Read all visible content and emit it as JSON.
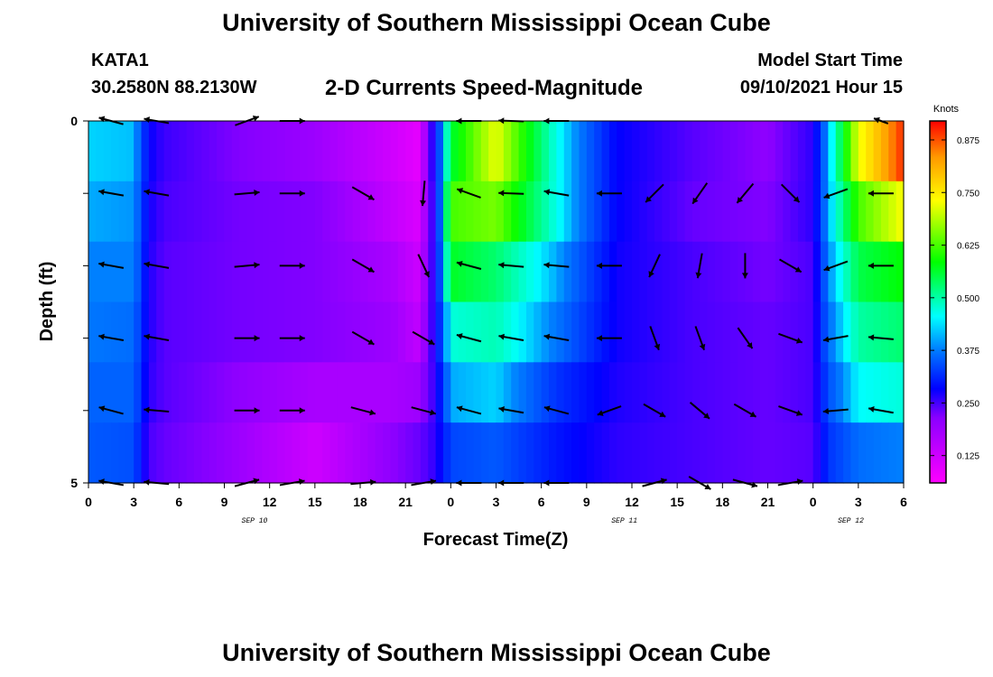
{
  "header": {
    "title": "University of Southern Mississippi Ocean Cube",
    "station_id": "KATA1",
    "coordinates": "30.2580N  88.2130W",
    "subtitle": "2-D Currents Speed-Magnitude",
    "model_start_label": "Model Start Time",
    "model_start_value": "09/10/2021 Hour 15"
  },
  "footer": {
    "title": "University of Southern Mississippi Ocean Cube"
  },
  "chart_data": {
    "type": "heatmap",
    "xlabel": "Forecast Time(Z)",
    "ylabel": "Depth (ft)",
    "x_tick_labels": [
      "0",
      "3",
      "6",
      "9",
      "12",
      "15",
      "18",
      "21",
      "0",
      "3",
      "6",
      "9",
      "12",
      "15",
      "18",
      "21",
      "0",
      "3",
      "6"
    ],
    "x_range_hours": [
      0,
      54
    ],
    "y_tick_labels": [
      "0",
      "5"
    ],
    "y_range": [
      0,
      5
    ],
    "date_labels": [
      {
        "label": "SEP 10",
        "hour": 11
      },
      {
        "label": "SEP 11",
        "hour": 35.5
      },
      {
        "label": "SEP 12",
        "hour": 50.5
      }
    ],
    "colorbar": {
      "title": "Knots",
      "range": [
        0.06,
        0.92
      ],
      "ticks": [
        "0.125",
        "0.250",
        "0.375",
        "0.500",
        "0.625",
        "0.750",
        "0.875"
      ],
      "tick_values": [
        0.125,
        0.25,
        0.375,
        0.5,
        0.625,
        0.75,
        0.875
      ]
    },
    "speed_keyframes_hours": [
      0,
      3,
      4,
      5,
      10,
      15,
      20,
      22,
      23,
      24,
      27,
      31,
      35,
      40,
      45,
      48,
      49,
      51,
      54
    ],
    "speed_profiles": [
      [
        0.42,
        0.41,
        0.25,
        0.21,
        0.16,
        0.14,
        0.1,
        0.08,
        0.26,
        0.55,
        0.72,
        0.45,
        0.25,
        0.19,
        0.15,
        0.22,
        0.4,
        0.72,
        0.9
      ],
      [
        0.4,
        0.39,
        0.24,
        0.2,
        0.17,
        0.16,
        0.11,
        0.09,
        0.24,
        0.62,
        0.65,
        0.45,
        0.25,
        0.18,
        0.16,
        0.22,
        0.4,
        0.62,
        0.73
      ],
      [
        0.38,
        0.38,
        0.23,
        0.19,
        0.17,
        0.16,
        0.13,
        0.1,
        0.24,
        0.56,
        0.52,
        0.4,
        0.24,
        0.2,
        0.17,
        0.2,
        0.38,
        0.54,
        0.58
      ],
      [
        0.37,
        0.36,
        0.23,
        0.19,
        0.17,
        0.16,
        0.14,
        0.11,
        0.24,
        0.46,
        0.48,
        0.37,
        0.24,
        0.2,
        0.18,
        0.2,
        0.36,
        0.49,
        0.52
      ],
      [
        0.35,
        0.35,
        0.22,
        0.19,
        0.15,
        0.13,
        0.13,
        0.14,
        0.22,
        0.4,
        0.42,
        0.3,
        0.23,
        0.2,
        0.18,
        0.2,
        0.33,
        0.44,
        0.46
      ],
      [
        0.34,
        0.33,
        0.2,
        0.18,
        0.14,
        0.1,
        0.15,
        0.18,
        0.22,
        0.32,
        0.34,
        0.27,
        0.22,
        0.2,
        0.18,
        0.19,
        0.3,
        0.36,
        0.38
      ]
    ],
    "vector_columns_hours": [
      1.5,
      4.5,
      10.5,
      13.5,
      18.2,
      22.2,
      25.2,
      28,
      31,
      34.5,
      37.5,
      40.5,
      43.5,
      46.5,
      49.5,
      52.5
    ],
    "vector_rows_depth": [
      0,
      1,
      2,
      3,
      4,
      5
    ],
    "vector_direction_deg": [
      [
        165,
        170,
        20,
        0,
        null,
        null,
        180,
        178,
        180,
        null,
        null,
        null,
        null,
        null,
        null,
        160
      ],
      [
        170,
        170,
        5,
        0,
        330,
        265,
        160,
        178,
        170,
        180,
        225,
        235,
        230,
        315,
        200,
        180
      ],
      [
        170,
        170,
        5,
        0,
        330,
        295,
        165,
        175,
        175,
        180,
        245,
        260,
        270,
        330,
        200,
        180
      ],
      [
        170,
        170,
        0,
        0,
        330,
        330,
        165,
        170,
        170,
        180,
        290,
        290,
        305,
        340,
        190,
        175
      ],
      [
        165,
        175,
        0,
        0,
        345,
        345,
        165,
        170,
        165,
        200,
        330,
        320,
        330,
        340,
        185,
        170
      ],
      [
        170,
        175,
        15,
        10,
        5,
        10,
        180,
        180,
        180,
        null,
        15,
        330,
        345,
        10,
        null,
        null
      ]
    ],
    "vector_length_scale": [
      [
        1.0,
        1.0,
        1.0,
        1.0,
        0,
        0,
        1.0,
        1.0,
        1.0,
        0,
        0,
        0,
        0,
        0,
        0,
        0.6
      ],
      [
        1.0,
        1.0,
        1.0,
        1.0,
        1.0,
        1.0,
        1.0,
        1.0,
        1.0,
        1.0,
        1.0,
        1.0,
        1.0,
        1.0,
        1.0,
        1.0
      ],
      [
        1.0,
        1.0,
        1.0,
        1.0,
        1.0,
        1.0,
        1.0,
        1.0,
        1.0,
        1.0,
        1.0,
        1.0,
        1.0,
        1.0,
        1.0,
        1.0
      ],
      [
        1.0,
        1.0,
        1.0,
        1.0,
        1.0,
        1.0,
        1.0,
        1.0,
        1.0,
        1.0,
        1.0,
        1.0,
        1.0,
        1.0,
        1.0,
        1.0
      ],
      [
        1.0,
        1.0,
        1.0,
        1.0,
        1.0,
        1.0,
        1.0,
        1.0,
        1.0,
        1.0,
        1.0,
        1.0,
        1.0,
        1.0,
        1.0,
        1.0
      ],
      [
        1.0,
        1.0,
        1.0,
        1.0,
        1.0,
        1.0,
        1.0,
        1.0,
        1.0,
        0,
        1.0,
        1.0,
        1.0,
        1.0,
        0,
        0
      ]
    ]
  }
}
